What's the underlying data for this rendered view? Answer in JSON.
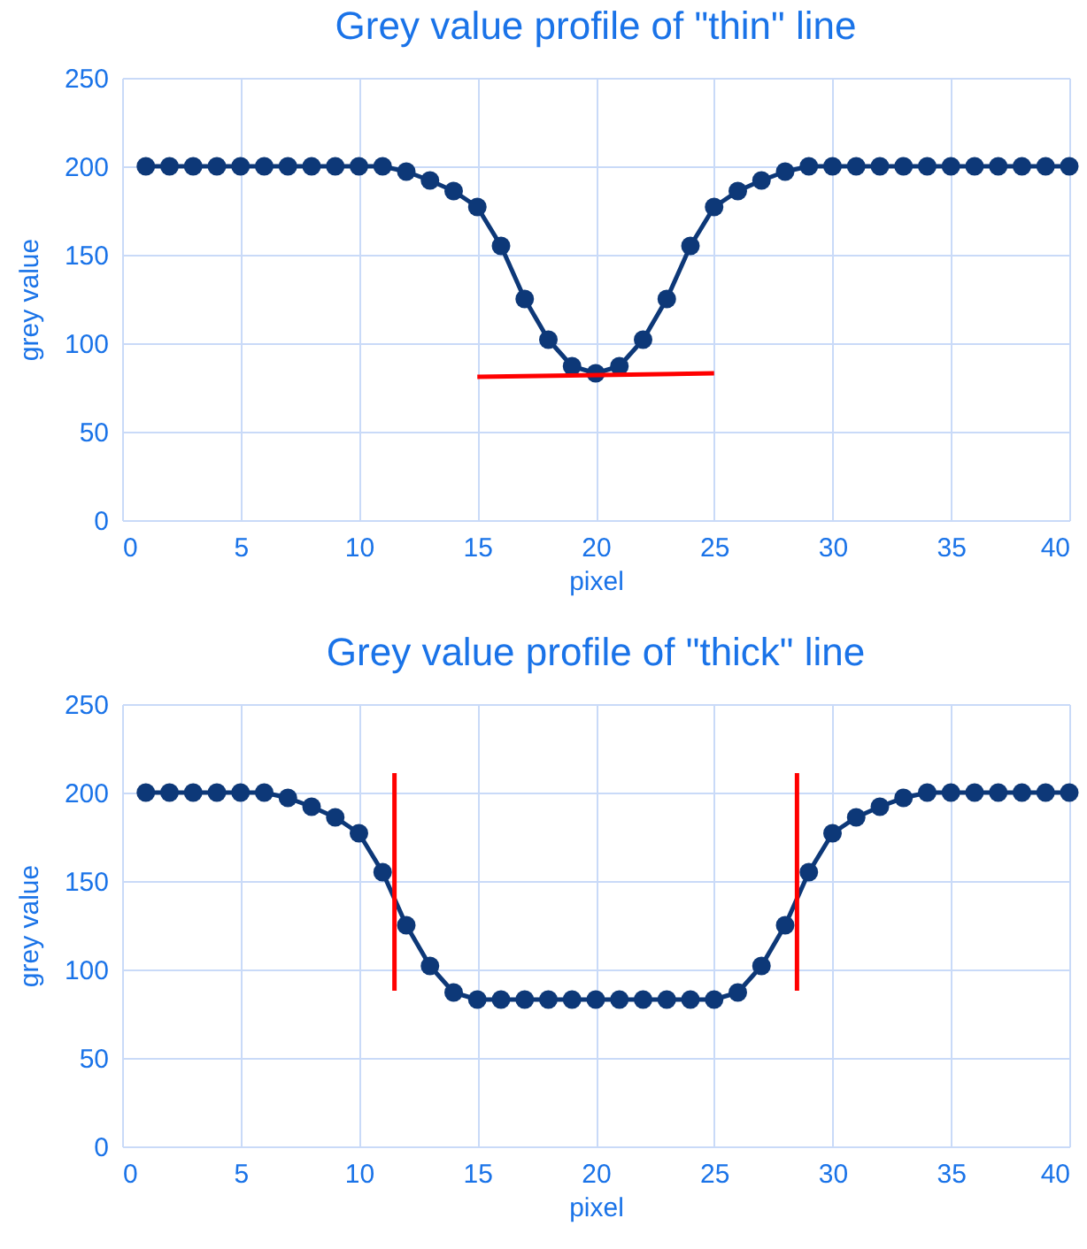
{
  "chart_data": [
    {
      "type": "line",
      "title": "Grey value profile of \"thin\" line",
      "xlabel": "pixel",
      "ylabel": "grey value",
      "x": [
        1,
        2,
        3,
        4,
        5,
        6,
        7,
        8,
        9,
        10,
        11,
        12,
        13,
        14,
        15,
        16,
        17,
        18,
        19,
        20,
        21,
        22,
        23,
        24,
        25,
        26,
        27,
        28,
        29,
        30,
        31,
        32,
        33,
        34,
        35,
        36,
        37,
        38,
        39,
        40
      ],
      "series": [
        {
          "color": "#0d3878",
          "values": [
            200,
            200,
            200,
            200,
            200,
            200,
            200,
            200,
            200,
            200,
            200,
            197,
            192,
            186,
            177,
            155,
            125,
            102,
            87,
            83,
            87,
            102,
            125,
            155,
            177,
            186,
            192,
            197,
            200,
            200,
            200,
            200,
            200,
            200,
            200,
            200,
            200,
            200,
            200,
            200
          ]
        },
        {
          "type": "line",
          "marker": "none",
          "color": "#ff0000",
          "x": [
            15,
            25
          ],
          "values": [
            81,
            83
          ]
        }
      ],
      "xlim": [
        0,
        40
      ],
      "xticks": [
        0,
        5,
        10,
        15,
        20,
        25,
        30,
        35,
        40
      ],
      "ylim": [
        0,
        250
      ],
      "yticks": [
        0,
        50,
        100,
        150,
        200,
        250
      ],
      "grid": true,
      "marker": "circle"
    },
    {
      "type": "line",
      "title": "Grey value profile of \"thick\" line",
      "xlabel": "pixel",
      "ylabel": "grey value",
      "x": [
        1,
        2,
        3,
        4,
        5,
        6,
        7,
        8,
        9,
        10,
        11,
        12,
        13,
        14,
        15,
        16,
        17,
        18,
        19,
        20,
        21,
        22,
        23,
        24,
        25,
        26,
        27,
        28,
        29,
        30,
        31,
        32,
        33,
        34,
        35,
        36,
        37,
        38,
        39,
        40
      ],
      "series": [
        {
          "color": "#0d3878",
          "values": [
            200,
            200,
            200,
            200,
            200,
            200,
            197,
            192,
            186,
            177,
            155,
            125,
            102,
            87,
            83,
            83,
            83,
            83,
            83,
            83,
            83,
            83,
            83,
            83,
            83,
            87,
            102,
            125,
            155,
            177,
            186,
            192,
            197,
            200,
            200,
            200,
            200,
            200,
            200,
            200
          ]
        },
        {
          "type": "line",
          "marker": "none",
          "color": "#ff0000",
          "x": [
            11.5,
            11.5
          ],
          "values": [
            88,
            211
          ]
        },
        {
          "type": "line",
          "marker": "none",
          "color": "#ff0000",
          "x": [
            28.5,
            28.5
          ],
          "values": [
            88,
            211
          ]
        }
      ],
      "xlim": [
        0,
        40
      ],
      "xticks": [
        0,
        5,
        10,
        15,
        20,
        25,
        30,
        35,
        40
      ],
      "ylim": [
        0,
        250
      ],
      "yticks": [
        0,
        50,
        100,
        150,
        200,
        250
      ],
      "grid": true,
      "marker": "circle"
    }
  ]
}
